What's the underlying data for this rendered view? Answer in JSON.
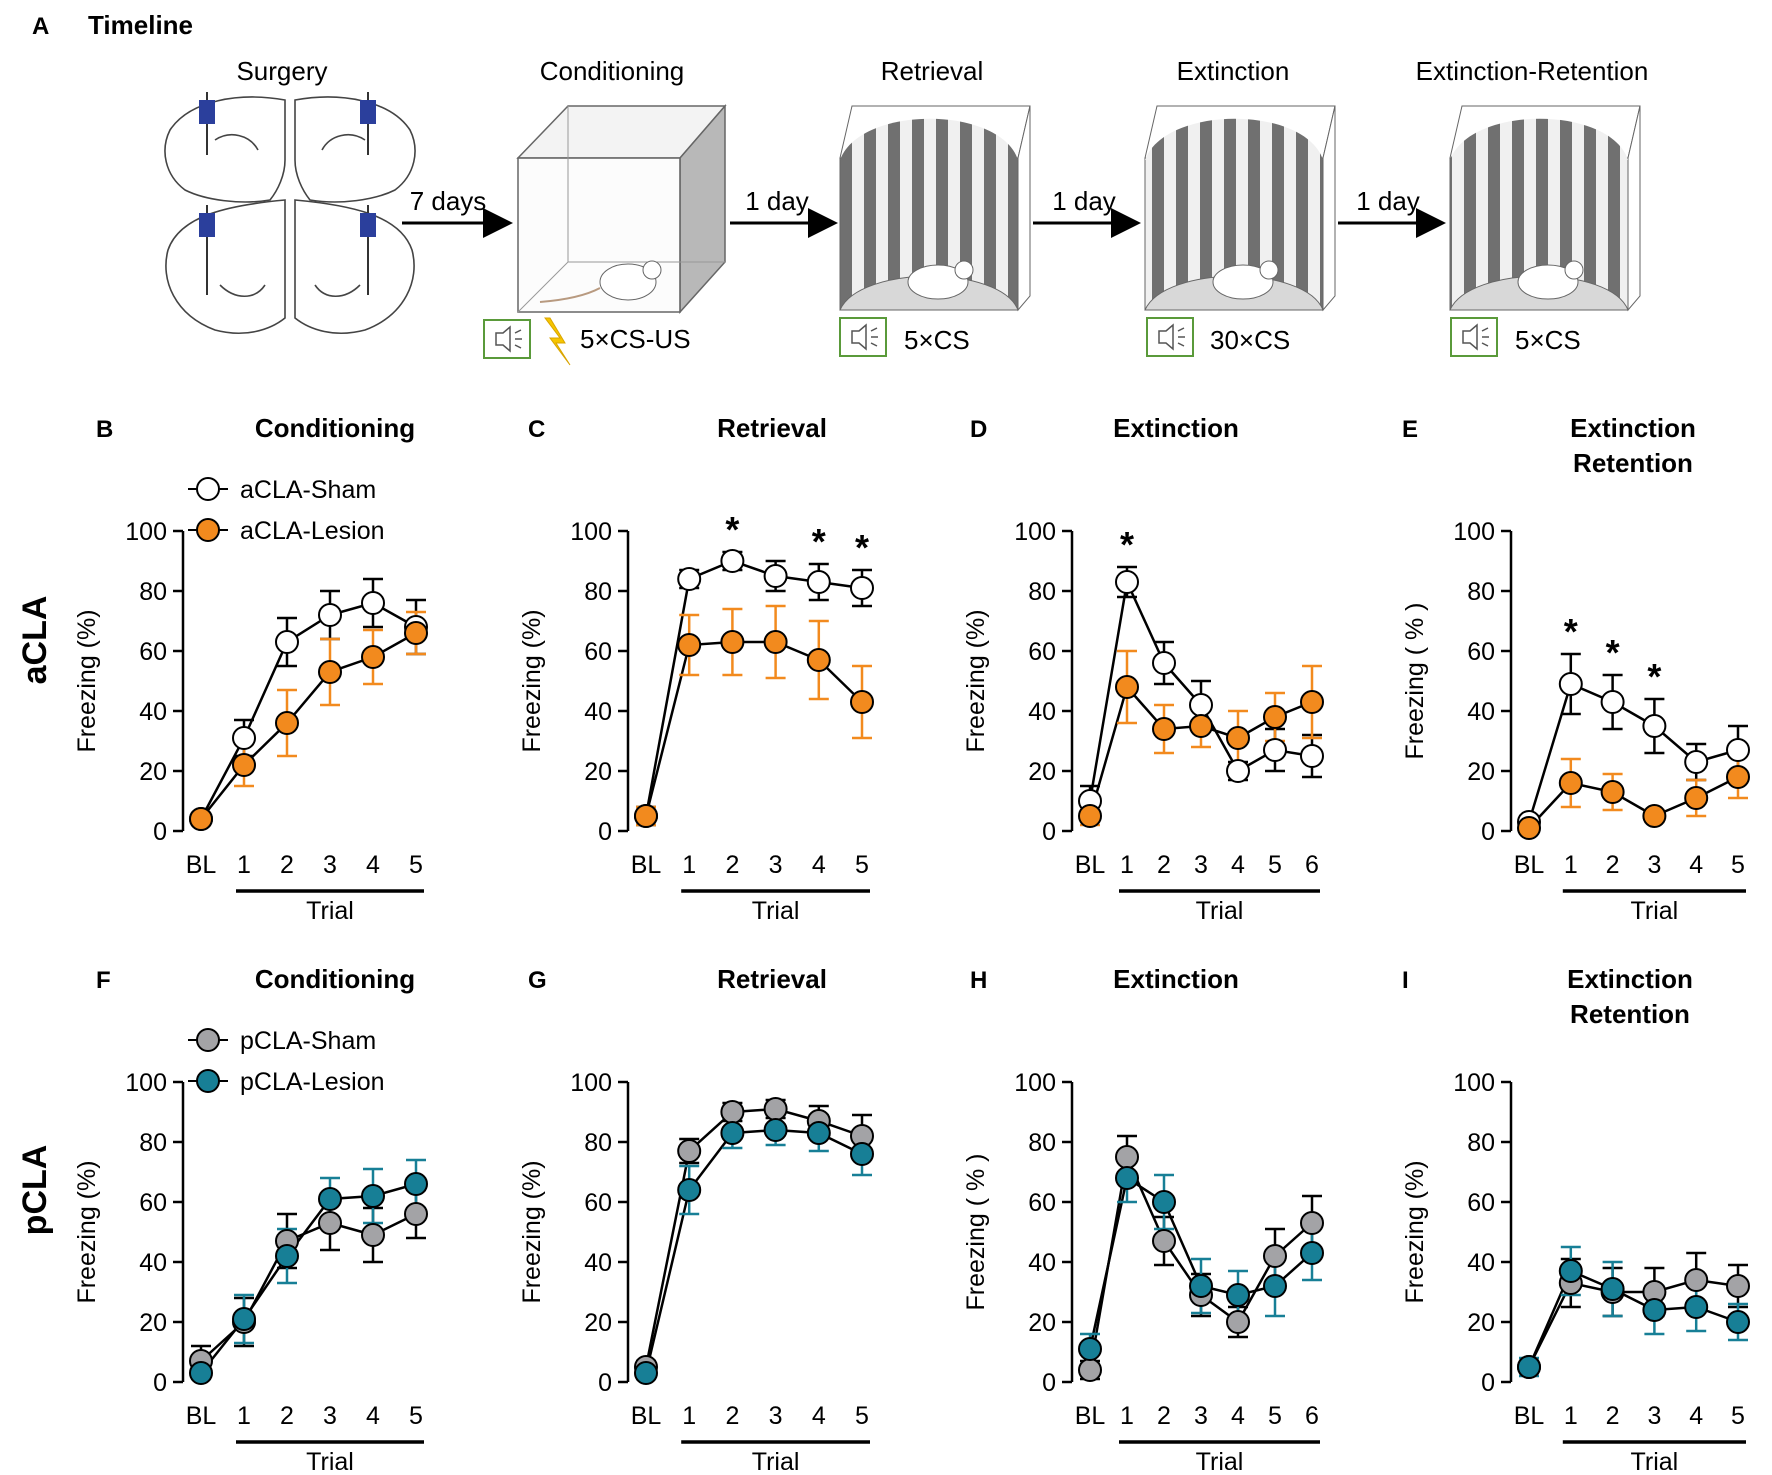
{
  "panel_a": {
    "letter": "A",
    "title": "Timeline",
    "stages": [
      {
        "name": "Surgery",
        "cs": ""
      },
      {
        "name": "Conditioning",
        "cs": "5×CS-US"
      },
      {
        "name": "Retrieval",
        "cs": "5×CS"
      },
      {
        "name": "Extinction",
        "cs": "30×CS"
      },
      {
        "name": "Extinction-Retention",
        "cs": "5×CS"
      }
    ],
    "intervals": [
      "7 days",
      "1 day",
      "1 day",
      "1 day"
    ]
  },
  "row_labels": [
    "aCLA",
    "pCLA"
  ],
  "legends": [
    {
      "series": [
        "aCLA-Sham",
        "aCLA-Lesion"
      ],
      "colors": [
        "#ffffff",
        "#f28a1e"
      ]
    },
    {
      "series": [
        "pCLA-Sham",
        "pCLA-Lesion"
      ],
      "colors": [
        "#a3a3a6",
        "#177f96"
      ]
    }
  ],
  "colors": {
    "orange": "#f28a1e",
    "teal": "#177f96",
    "grey": "#a3a3a6",
    "white": "#ffffff"
  },
  "chart_data": [
    {
      "letter": "B",
      "type": "line",
      "title": "Conditioning",
      "ylabel": "Freezing (%)",
      "xlabel": "Trial",
      "ylim": [
        0,
        100
      ],
      "yticks": [
        0,
        20,
        40,
        60,
        80,
        100
      ],
      "categories": [
        "BL",
        "1",
        "2",
        "3",
        "4",
        "5"
      ],
      "series": [
        {
          "name": "aCLA-Sham",
          "fill": "#ffffff",
          "err": "#000000",
          "values": [
            4,
            31,
            63,
            72,
            76,
            68
          ],
          "sem": [
            2,
            6,
            8,
            8,
            8,
            9
          ]
        },
        {
          "name": "aCLA-Lesion",
          "fill": "#f28a1e",
          "err": "#f28a1e",
          "values": [
            4,
            22,
            36,
            53,
            58,
            66
          ],
          "sem": [
            2,
            7,
            11,
            11,
            9,
            7
          ]
        }
      ],
      "stars": []
    },
    {
      "letter": "C",
      "type": "line",
      "title": "Retrieval",
      "ylabel": "Freezing (%)",
      "xlabel": "Trial",
      "ylim": [
        0,
        100
      ],
      "yticks": [
        0,
        20,
        40,
        60,
        80,
        100
      ],
      "categories": [
        "BL",
        "1",
        "2",
        "3",
        "4",
        "5"
      ],
      "series": [
        {
          "name": "aCLA-Sham",
          "fill": "#ffffff",
          "err": "#000000",
          "values": [
            5,
            84,
            90,
            85,
            83,
            81
          ],
          "sem": [
            3,
            3,
            3,
            5,
            6,
            6
          ]
        },
        {
          "name": "aCLA-Lesion",
          "fill": "#f28a1e",
          "err": "#f28a1e",
          "values": [
            5,
            62,
            63,
            63,
            57,
            43
          ],
          "sem": [
            3,
            10,
            11,
            12,
            13,
            12
          ]
        }
      ],
      "stars": [
        2,
        4,
        5
      ]
    },
    {
      "letter": "D",
      "type": "line",
      "title": "Extinction",
      "ylabel": "Freezing (%)",
      "xlabel": "Trial",
      "ylim": [
        0,
        100
      ],
      "yticks": [
        0,
        20,
        40,
        60,
        80,
        100
      ],
      "categories": [
        "BL",
        "1",
        "2",
        "3",
        "4",
        "5",
        "6"
      ],
      "series": [
        {
          "name": "aCLA-Sham",
          "fill": "#ffffff",
          "err": "#000000",
          "values": [
            10,
            83,
            56,
            42,
            20,
            27,
            25
          ],
          "sem": [
            5,
            5,
            7,
            8,
            3,
            7,
            7
          ]
        },
        {
          "name": "aCLA-Lesion",
          "fill": "#f28a1e",
          "err": "#f28a1e",
          "values": [
            5,
            48,
            34,
            35,
            31,
            38,
            43
          ],
          "sem": [
            3,
            12,
            8,
            7,
            9,
            8,
            12
          ]
        }
      ],
      "stars": [
        1
      ]
    },
    {
      "letter": "E",
      "type": "line",
      "title": "Extinction\nRetention",
      "ylabel": "Freezing ( % )",
      "xlabel": "Trial",
      "ylim": [
        0,
        100
      ],
      "yticks": [
        0,
        20,
        40,
        60,
        80,
        100
      ],
      "categories": [
        "BL",
        "1",
        "2",
        "3",
        "4",
        "5"
      ],
      "series": [
        {
          "name": "aCLA-Sham",
          "fill": "#ffffff",
          "err": "#000000",
          "values": [
            3,
            49,
            43,
            35,
            23,
            27
          ],
          "sem": [
            2,
            10,
            9,
            9,
            6,
            8
          ]
        },
        {
          "name": "aCLA-Lesion",
          "fill": "#f28a1e",
          "err": "#f28a1e",
          "values": [
            1,
            16,
            13,
            5,
            11,
            18
          ],
          "sem": [
            1,
            8,
            6,
            2,
            6,
            7
          ]
        }
      ],
      "stars": [
        1,
        2,
        3
      ]
    },
    {
      "letter": "F",
      "type": "line",
      "title": "Conditioning",
      "ylabel": "Freezing (%)",
      "xlabel": "Trial",
      "ylim": [
        0,
        100
      ],
      "yticks": [
        0,
        20,
        40,
        60,
        80,
        100
      ],
      "categories": [
        "BL",
        "1",
        "2",
        "3",
        "4",
        "5"
      ],
      "series": [
        {
          "name": "pCLA-Sham",
          "fill": "#a3a3a6",
          "err": "#000000",
          "values": [
            7,
            20,
            47,
            53,
            49,
            56
          ],
          "sem": [
            5,
            8,
            9,
            9,
            9,
            8
          ]
        },
        {
          "name": "pCLA-Lesion",
          "fill": "#177f96",
          "err": "#177f96",
          "values": [
            3,
            21,
            42,
            61,
            62,
            66
          ],
          "sem": [
            2,
            8,
            9,
            7,
            9,
            8
          ]
        }
      ],
      "stars": []
    },
    {
      "letter": "G",
      "type": "line",
      "title": "Retrieval",
      "ylabel": "Freezing (%)",
      "xlabel": "Trial",
      "ylim": [
        0,
        100
      ],
      "yticks": [
        0,
        20,
        40,
        60,
        80,
        100
      ],
      "categories": [
        "BL",
        "1",
        "2",
        "3",
        "4",
        "5"
      ],
      "series": [
        {
          "name": "pCLA-Sham",
          "fill": "#a3a3a6",
          "err": "#000000",
          "values": [
            5,
            77,
            90,
            91,
            87,
            82
          ],
          "sem": [
            2,
            4,
            3,
            3,
            5,
            7
          ]
        },
        {
          "name": "pCLA-Lesion",
          "fill": "#177f96",
          "err": "#177f96",
          "values": [
            3,
            64,
            83,
            84,
            83,
            76
          ],
          "sem": [
            2,
            8,
            5,
            5,
            6,
            7
          ]
        }
      ],
      "stars": []
    },
    {
      "letter": "H",
      "type": "line",
      "title": "Extinction",
      "ylabel": "Freezing ( % )",
      "xlabel": "Trial",
      "ylim": [
        0,
        100
      ],
      "yticks": [
        0,
        20,
        40,
        60,
        80,
        100
      ],
      "categories": [
        "BL",
        "1",
        "2",
        "3",
        "4",
        "5",
        "6"
      ],
      "series": [
        {
          "name": "pCLA-Sham",
          "fill": "#a3a3a6",
          "err": "#000000",
          "values": [
            4,
            75,
            47,
            29,
            20,
            42,
            53
          ],
          "sem": [
            3,
            7,
            8,
            7,
            5,
            9,
            9
          ]
        },
        {
          "name": "pCLA-Lesion",
          "fill": "#177f96",
          "err": "#177f96",
          "values": [
            11,
            68,
            60,
            32,
            29,
            32,
            43
          ],
          "sem": [
            5,
            8,
            9,
            9,
            8,
            10,
            9
          ]
        }
      ],
      "stars": []
    },
    {
      "letter": "I",
      "type": "line",
      "title": "Extinction\nRetention",
      "ylabel": "Freezing (%)",
      "xlabel": "Trial",
      "ylim": [
        0,
        100
      ],
      "yticks": [
        0,
        20,
        40,
        60,
        80,
        100
      ],
      "categories": [
        "BL",
        "1",
        "2",
        "3",
        "4",
        "5"
      ],
      "series": [
        {
          "name": "pCLA-Sham",
          "fill": "#a3a3a6",
          "err": "#000000",
          "values": [
            5,
            33,
            30,
            30,
            34,
            32
          ],
          "sem": [
            2,
            8,
            8,
            8,
            9,
            7
          ]
        },
        {
          "name": "pCLA-Lesion",
          "fill": "#177f96",
          "err": "#177f96",
          "values": [
            5,
            37,
            31,
            24,
            25,
            20
          ],
          "sem": [
            3,
            8,
            9,
            8,
            8,
            6
          ]
        }
      ],
      "stars": []
    }
  ]
}
